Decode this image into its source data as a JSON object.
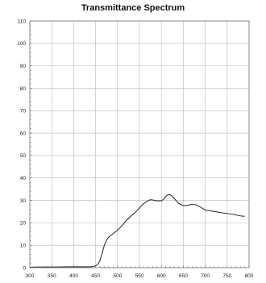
{
  "chart_data": {
    "type": "line",
    "title": "Transmittance Spectrum",
    "xlabel": "",
    "ylabel": "",
    "xlim": [
      300,
      800
    ],
    "ylim": [
      0,
      110
    ],
    "xticks": [
      300,
      350,
      400,
      450,
      500,
      550,
      600,
      650,
      700,
      750,
      800
    ],
    "yticks": [
      0,
      10,
      20,
      30,
      40,
      50,
      60,
      70,
      80,
      90,
      100,
      110
    ],
    "grid": true,
    "legend": "none",
    "line_color": "#333333",
    "grid_color": "#b8b8b8",
    "series": [
      {
        "x": [
          300,
          330,
          360,
          390,
          420,
          440,
          450,
          455,
          460,
          465,
          470,
          475,
          480,
          490,
          500,
          510,
          520,
          530,
          540,
          550,
          560,
          570,
          575,
          580,
          585,
          590,
          600,
          605,
          610,
          615,
          620,
          625,
          630,
          640,
          650,
          660,
          670,
          680,
          690,
          700,
          720,
          740,
          760,
          780,
          790
        ],
        "y": [
          0.2,
          0.3,
          0.3,
          0.4,
          0.4,
          0.4,
          0.8,
          1.5,
          3.2,
          6.5,
          10.0,
          12.3,
          13.7,
          15.2,
          16.7,
          18.7,
          21.0,
          22.9,
          24.6,
          26.7,
          28.6,
          29.9,
          30.3,
          30.2,
          30.0,
          29.8,
          29.8,
          30.5,
          31.7,
          32.5,
          32.5,
          31.9,
          30.7,
          28.6,
          27.7,
          27.8,
          28.3,
          28.0,
          26.9,
          25.7,
          25.1,
          24.4,
          23.9,
          23.1,
          22.9
        ]
      }
    ]
  }
}
